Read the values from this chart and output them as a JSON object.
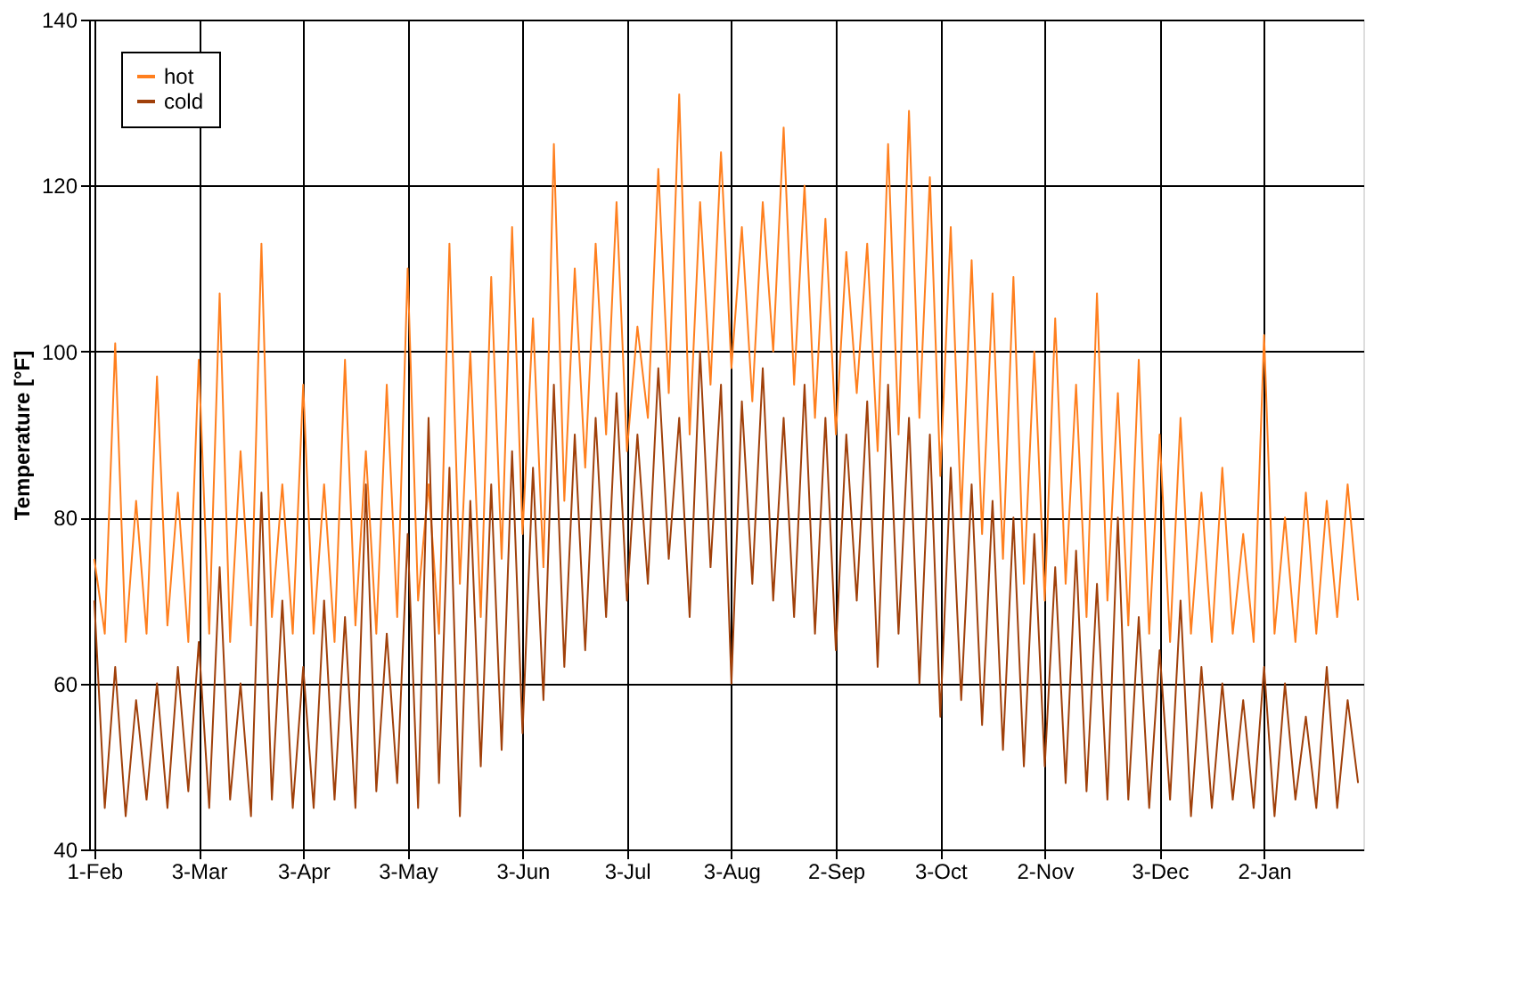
{
  "chart_data": {
    "type": "line",
    "ylabel": "Temperature [°F]",
    "categories": [
      "1-Feb",
      null,
      null,
      null,
      null,
      null,
      null,
      null,
      null,
      null,
      "3-Mar",
      null,
      null,
      null,
      null,
      null,
      null,
      null,
      null,
      null,
      "3-Apr",
      null,
      null,
      null,
      null,
      null,
      null,
      null,
      null,
      null,
      "3-May",
      null,
      null,
      null,
      null,
      null,
      null,
      null,
      null,
      null,
      null,
      "3-Jun",
      null,
      null,
      null,
      null,
      null,
      null,
      null,
      null,
      null,
      "3-Jul",
      null,
      null,
      null,
      null,
      null,
      null,
      null,
      null,
      null,
      "3-Aug",
      null,
      null,
      null,
      null,
      null,
      null,
      null,
      null,
      null,
      "2-Sep",
      null,
      null,
      null,
      null,
      null,
      null,
      null,
      null,
      null,
      "3-Oct",
      null,
      null,
      null,
      null,
      null,
      null,
      null,
      null,
      null,
      "2-Nov",
      null,
      null,
      null,
      null,
      null,
      null,
      null,
      null,
      null,
      null,
      "3-Dec",
      null,
      null,
      null,
      null,
      null,
      null,
      null,
      null,
      null,
      "2-Jan",
      null,
      null,
      null,
      null,
      null,
      null,
      null,
      null,
      null
    ],
    "series": [
      {
        "name": "hot",
        "color": "#ff7f1e",
        "values": [
          75,
          66,
          101,
          65,
          82,
          66,
          97,
          67,
          83,
          65,
          99,
          66,
          107,
          65,
          88,
          67,
          113,
          68,
          84,
          66,
          96,
          66,
          84,
          65,
          99,
          67,
          88,
          66,
          96,
          68,
          110,
          70,
          84,
          66,
          113,
          72,
          100,
          68,
          109,
          75,
          115,
          78,
          104,
          74,
          125,
          82,
          110,
          86,
          113,
          90,
          118,
          88,
          103,
          92,
          122,
          95,
          131,
          90,
          118,
          96,
          124,
          98,
          115,
          94,
          118,
          100,
          127,
          96,
          120,
          92,
          116,
          90,
          112,
          95,
          113,
          88,
          125,
          90,
          129,
          92,
          121,
          85,
          115,
          80,
          111,
          78,
          107,
          75,
          109,
          72,
          100,
          70,
          104,
          72,
          96,
          68,
          107,
          70,
          95,
          67,
          99,
          66,
          90,
          65,
          92,
          66,
          83,
          65,
          86,
          66,
          78,
          65,
          102,
          66,
          80,
          65,
          83,
          66,
          82,
          68,
          84,
          70
        ]
      },
      {
        "name": "cold",
        "color": "#a0400a",
        "values": [
          70,
          45,
          62,
          44,
          58,
          46,
          60,
          45,
          62,
          47,
          65,
          45,
          74,
          46,
          60,
          44,
          83,
          46,
          70,
          45,
          62,
          45,
          70,
          46,
          68,
          45,
          84,
          47,
          66,
          48,
          78,
          45,
          92,
          48,
          86,
          44,
          82,
          50,
          84,
          52,
          88,
          54,
          86,
          58,
          96,
          62,
          90,
          64,
          92,
          68,
          95,
          70,
          90,
          72,
          98,
          75,
          92,
          68,
          100,
          74,
          96,
          60,
          94,
          72,
          98,
          70,
          92,
          68,
          96,
          66,
          92,
          64,
          90,
          70,
          94,
          62,
          96,
          66,
          92,
          60,
          90,
          56,
          86,
          58,
          84,
          55,
          82,
          52,
          80,
          50,
          78,
          50,
          74,
          48,
          76,
          47,
          72,
          46,
          80,
          46,
          68,
          45,
          64,
          46,
          70,
          44,
          62,
          45,
          60,
          46,
          58,
          45,
          62,
          44,
          60,
          46,
          56,
          45,
          62,
          45,
          58,
          48
        ]
      }
    ],
    "ylim": [
      40,
      140
    ],
    "yticks": [
      40,
      60,
      80,
      100,
      120,
      140
    ],
    "grid": true,
    "legend": "top left",
    "marker": "none",
    "line_style": "solid"
  }
}
